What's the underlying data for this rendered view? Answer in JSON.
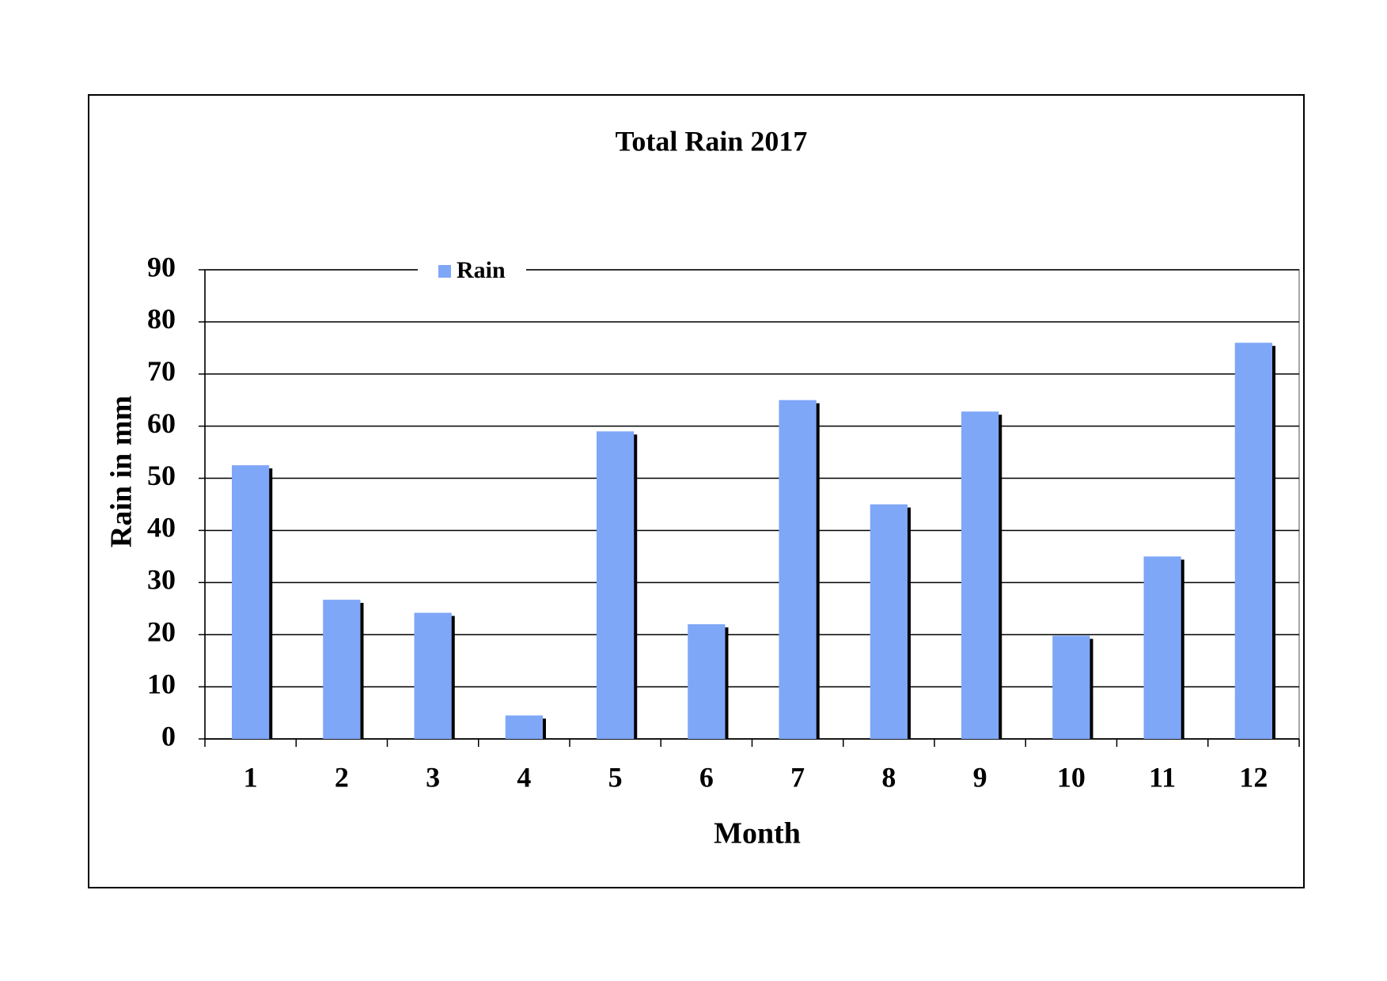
{
  "chart_data": {
    "type": "bar",
    "title": "Total Rain 2017",
    "x_label": "Month",
    "y_label": "Rain in mm",
    "categories": [
      "1",
      "2",
      "3",
      "4",
      "5",
      "6",
      "7",
      "8",
      "9",
      "10",
      "11",
      "12"
    ],
    "series": [
      {
        "name": "Rain",
        "color": "#7fa7f8",
        "values": [
          52.5,
          26.7,
          24.2,
          4.5,
          59,
          22,
          65,
          45,
          62.8,
          19.8,
          35,
          76
        ]
      }
    ],
    "ylim": [
      0,
      90
    ],
    "yticks": [
      0,
      10,
      20,
      30,
      40,
      50,
      60,
      70,
      80,
      90
    ],
    "grid": true,
    "legend": "top-left"
  }
}
